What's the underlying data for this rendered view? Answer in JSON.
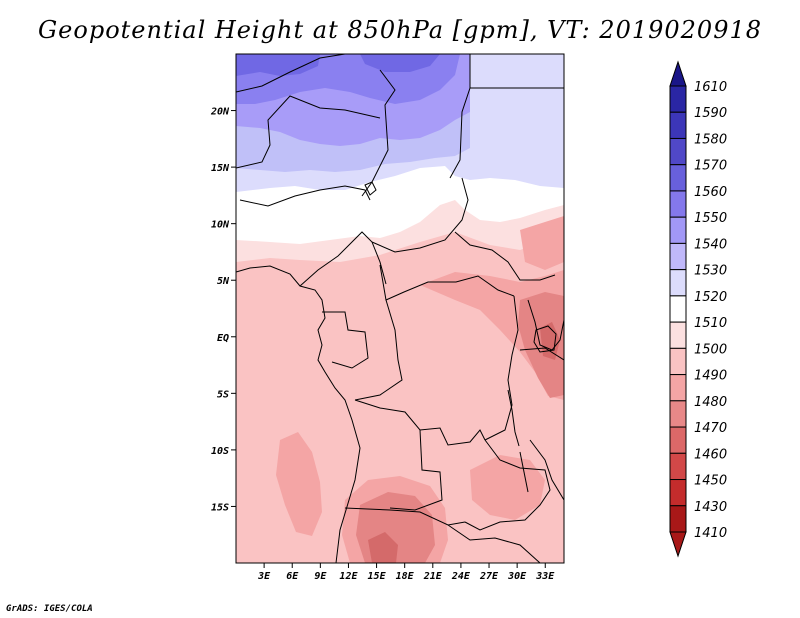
{
  "title": "Geopotential Height at 850hPa [gpm], VT: 2019020918",
  "footer": "GrADS: IGES/COLA",
  "map": {
    "region": "Central Africa",
    "lon_range": [
      0,
      35
    ],
    "lat_range": [
      -20,
      25
    ],
    "lat_ticks": [
      {
        "value": 20,
        "label": "20N"
      },
      {
        "value": 15,
        "label": "15N"
      },
      {
        "value": 10,
        "label": "10N"
      },
      {
        "value": 5,
        "label": "5N"
      },
      {
        "value": 0,
        "label": "EQ"
      },
      {
        "value": -5,
        "label": "5S"
      },
      {
        "value": -10,
        "label": "10S"
      },
      {
        "value": -15,
        "label": "15S"
      }
    ],
    "lon_ticks": [
      {
        "value": 3,
        "label": "3E"
      },
      {
        "value": 6,
        "label": "6E"
      },
      {
        "value": 9,
        "label": "9E"
      },
      {
        "value": 12,
        "label": "12E"
      },
      {
        "value": 15,
        "label": "15E"
      },
      {
        "value": 18,
        "label": "18E"
      },
      {
        "value": 21,
        "label": "21E"
      },
      {
        "value": 24,
        "label": "24E"
      },
      {
        "value": 27,
        "label": "27E"
      },
      {
        "value": 30,
        "label": "30E"
      },
      {
        "value": 33,
        "label": "33E"
      }
    ],
    "colors": {
      "bg_pink": "#fac3c3",
      "white": "#ffffff",
      "pale_pink": "#fce0e0",
      "lav_1520": "#dcdcfc",
      "lav_1530": "#c0c0f8",
      "blue_1540": "#a89cf8",
      "blue_1550": "#8a80f0",
      "blue_1560": "#7068e4",
      "salmon_1480": "#f4a5a5",
      "rose_1470": "#e48585",
      "red_1460": "#d46a6a",
      "border": "#000000"
    }
  },
  "colorbar": {
    "levels": [
      1610,
      1590,
      1580,
      1570,
      1560,
      1550,
      1540,
      1530,
      1520,
      1510,
      1500,
      1490,
      1480,
      1470,
      1460,
      1450,
      1430,
      1410
    ],
    "colors": [
      "#1a1688",
      "#2a26a4",
      "#3c36b8",
      "#5048c8",
      "#6860dc",
      "#8478ec",
      "#a298f6",
      "#c0b8fa",
      "#dcdcfc",
      "#ffffff",
      "#fce0e0",
      "#fac3c3",
      "#f4a5a5",
      "#e88888",
      "#dc6868",
      "#d24848",
      "#c42c2c",
      "#a81818"
    ],
    "top_color": "#1a1688",
    "bottom_color": "#a81818"
  }
}
